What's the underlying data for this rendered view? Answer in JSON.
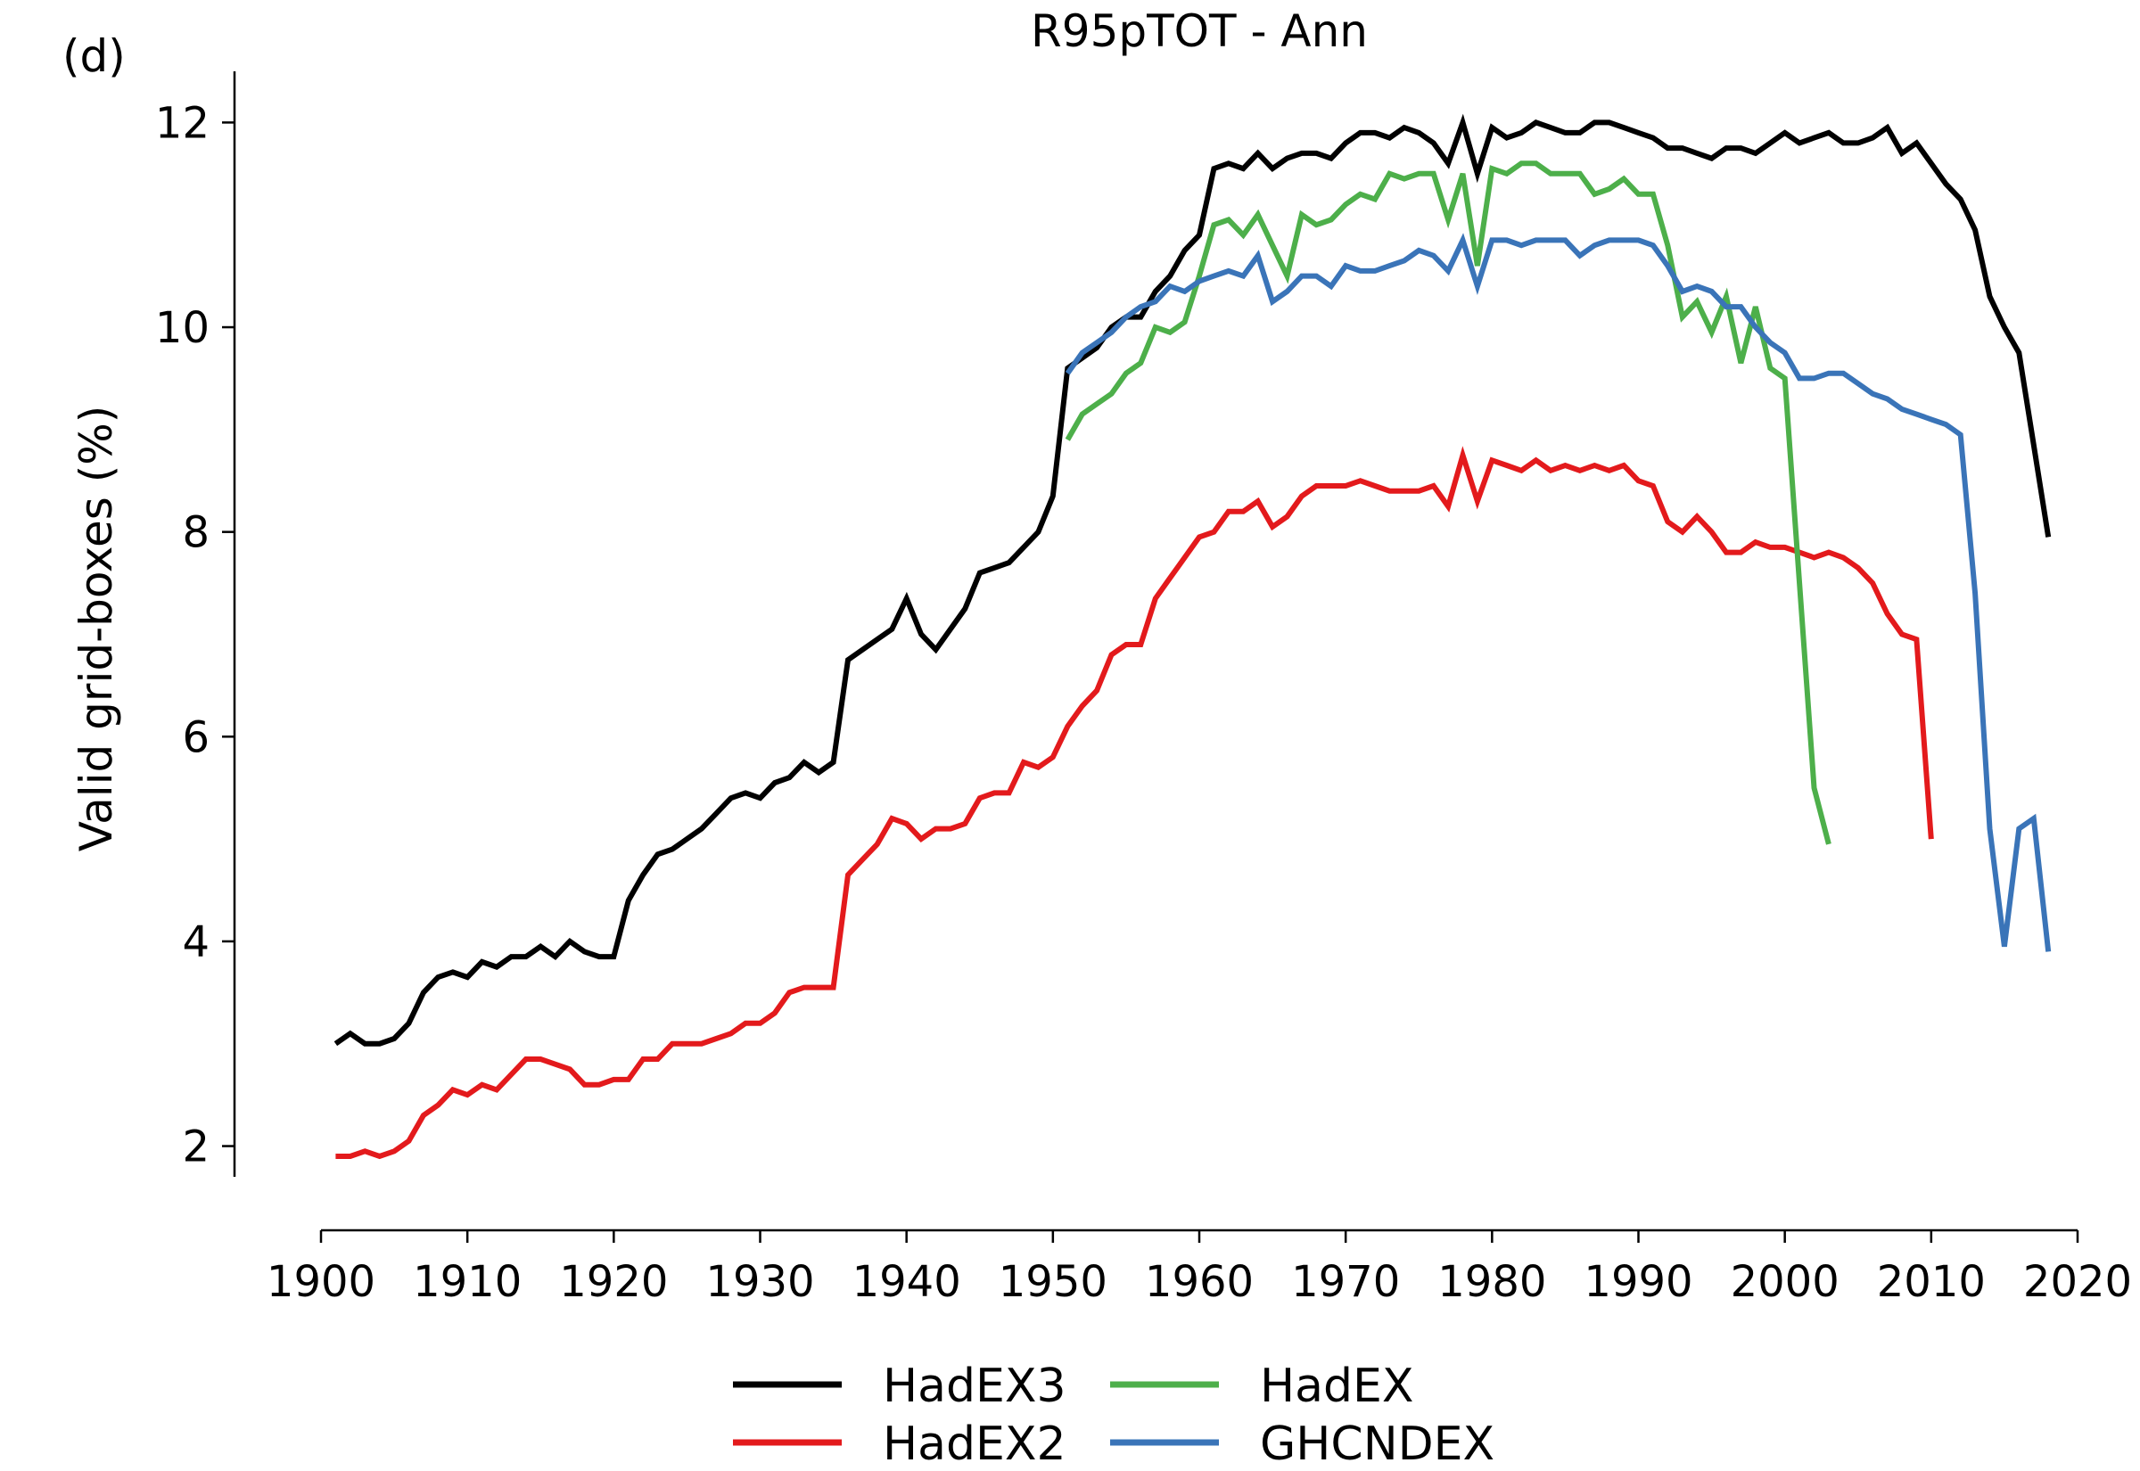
{
  "chart_data": {
    "type": "line",
    "panel_label": "(d)",
    "title": "R95pTOT - Ann",
    "xlabel": "",
    "ylabel": "Valid grid-boxes (%)",
    "xlim": [
      1900,
      2020
    ],
    "ylim": [
      1.7,
      12.5
    ],
    "xticks": [
      1900,
      1910,
      1920,
      1930,
      1940,
      1950,
      1960,
      1970,
      1980,
      1990,
      2000,
      2010,
      2020
    ],
    "yticks": [
      2,
      4,
      6,
      8,
      10,
      12
    ],
    "grid": false,
    "legend_position": "bottom",
    "series": [
      {
        "name": "HadEX3",
        "color": "#000000",
        "x_start": 1901,
        "values": [
          3.0,
          3.1,
          3.0,
          3.0,
          3.05,
          3.2,
          3.5,
          3.65,
          3.7,
          3.65,
          3.8,
          3.75,
          3.85,
          3.85,
          3.95,
          3.85,
          4.0,
          3.9,
          3.85,
          3.85,
          4.4,
          4.65,
          4.85,
          4.9,
          5.0,
          5.1,
          5.25,
          5.4,
          5.45,
          5.4,
          5.55,
          5.6,
          5.75,
          5.65,
          5.75,
          6.75,
          6.85,
          6.95,
          7.05,
          7.35,
          7.0,
          6.85,
          7.05,
          7.25,
          7.6,
          7.65,
          7.7,
          7.85,
          8.0,
          8.35,
          9.6,
          9.7,
          9.8,
          10.0,
          10.1,
          10.1,
          10.35,
          10.5,
          10.75,
          10.9,
          11.55,
          11.6,
          11.55,
          11.7,
          11.55,
          11.65,
          11.7,
          11.7,
          11.65,
          11.8,
          11.9,
          11.9,
          11.85,
          11.95,
          11.9,
          11.8,
          11.6,
          12.0,
          11.5,
          11.95,
          11.85,
          11.9,
          12.0,
          11.95,
          11.9,
          11.9,
          12.0,
          12.0,
          11.95,
          11.9,
          11.85,
          11.75,
          11.75,
          11.7,
          11.65,
          11.75,
          11.75,
          11.7,
          11.8,
          11.9,
          11.8,
          11.85,
          11.9,
          11.8,
          11.8,
          11.85,
          11.95,
          11.7,
          11.8,
          11.6,
          11.4,
          11.25,
          10.95,
          10.3,
          10.0,
          9.75,
          8.85,
          7.95
        ]
      },
      {
        "name": "HadEX2",
        "color": "#e31a1c",
        "x_start": 1901,
        "values": [
          1.9,
          1.9,
          1.95,
          1.9,
          1.95,
          2.05,
          2.3,
          2.4,
          2.55,
          2.5,
          2.6,
          2.55,
          2.7,
          2.85,
          2.85,
          2.8,
          2.75,
          2.6,
          2.6,
          2.65,
          2.65,
          2.85,
          2.85,
          3.0,
          3.0,
          3.0,
          3.05,
          3.1,
          3.2,
          3.2,
          3.3,
          3.5,
          3.55,
          3.55,
          3.55,
          4.65,
          4.8,
          4.95,
          5.2,
          5.15,
          5.0,
          5.1,
          5.1,
          5.15,
          5.4,
          5.45,
          5.45,
          5.75,
          5.7,
          5.8,
          6.1,
          6.3,
          6.45,
          6.8,
          6.9,
          6.9,
          7.35,
          7.55,
          7.75,
          7.95,
          8.0,
          8.2,
          8.2,
          8.3,
          8.05,
          8.15,
          8.35,
          8.45,
          8.45,
          8.45,
          8.5,
          8.45,
          8.4,
          8.4,
          8.4,
          8.45,
          8.25,
          8.75,
          8.3,
          8.7,
          8.65,
          8.6,
          8.7,
          8.6,
          8.65,
          8.6,
          8.65,
          8.6,
          8.65,
          8.5,
          8.45,
          8.1,
          8.0,
          8.15,
          8.0,
          7.8,
          7.8,
          7.9,
          7.85,
          7.85,
          7.8,
          7.75,
          7.8,
          7.75,
          7.65,
          7.5,
          7.2,
          7.0,
          6.95,
          5.0
        ]
      },
      {
        "name": "HadEX",
        "color": "#4daf4a",
        "x_start": 1951,
        "values": [
          8.9,
          9.15,
          9.25,
          9.35,
          9.55,
          9.65,
          10.0,
          9.95,
          10.05,
          10.5,
          11.0,
          11.05,
          10.9,
          11.1,
          10.8,
          10.5,
          11.1,
          11.0,
          11.05,
          11.2,
          11.3,
          11.25,
          11.5,
          11.45,
          11.5,
          11.5,
          11.05,
          11.5,
          10.6,
          11.55,
          11.5,
          11.6,
          11.6,
          11.5,
          11.5,
          11.5,
          11.3,
          11.35,
          11.45,
          11.3,
          11.3,
          10.8,
          10.1,
          10.25,
          9.95,
          10.3,
          9.65,
          10.2,
          9.6,
          9.5,
          7.5,
          5.5,
          4.95
        ]
      },
      {
        "name": "GHCNDEX",
        "color": "#3a74b8",
        "x_start": 1951,
        "values": [
          9.55,
          9.75,
          9.85,
          9.95,
          10.1,
          10.2,
          10.25,
          10.4,
          10.35,
          10.45,
          10.5,
          10.55,
          10.5,
          10.7,
          10.25,
          10.35,
          10.5,
          10.5,
          10.4,
          10.6,
          10.55,
          10.55,
          10.6,
          10.65,
          10.75,
          10.7,
          10.55,
          10.85,
          10.4,
          10.85,
          10.85,
          10.8,
          10.85,
          10.85,
          10.85,
          10.7,
          10.8,
          10.85,
          10.85,
          10.85,
          10.8,
          10.6,
          10.35,
          10.4,
          10.35,
          10.2,
          10.2,
          10.0,
          9.85,
          9.75,
          9.5,
          9.5,
          9.55,
          9.55,
          9.45,
          9.35,
          9.3,
          9.2,
          9.15,
          9.1,
          9.05,
          8.95,
          7.4,
          5.1,
          3.95,
          5.1,
          5.2,
          3.9
        ]
      }
    ]
  }
}
